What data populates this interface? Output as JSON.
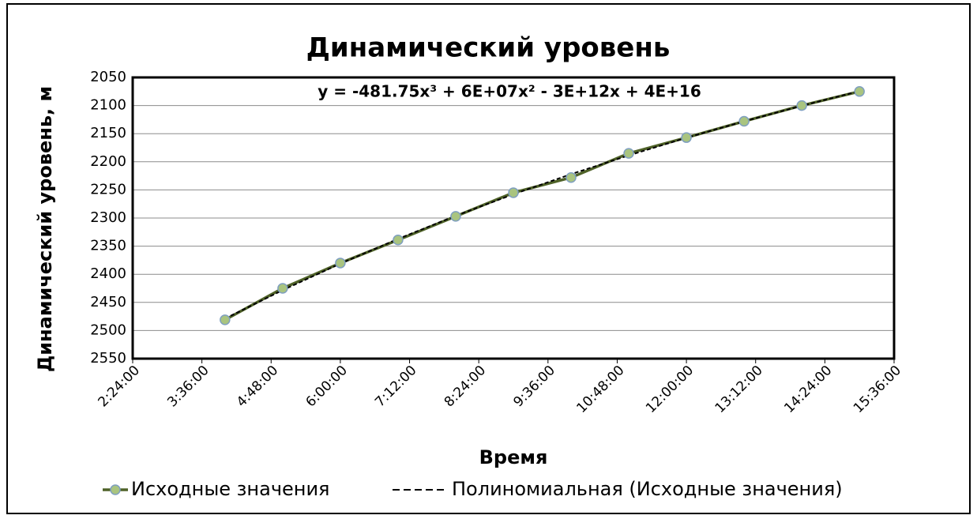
{
  "chart_data": {
    "type": "line",
    "title": "Динамический уровень",
    "x_label": "Время",
    "y_label": "Динамический уровень, м",
    "x": [
      "4:00:00",
      "5:00:00",
      "6:00:00",
      "7:00:00",
      "8:00:00",
      "9:00:00",
      "10:00:00",
      "11:00:00",
      "12:00:00",
      "13:00:00",
      "14:00:00",
      "15:00:00"
    ],
    "series": [
      {
        "name": "Исходные значения",
        "color": "#4f6228",
        "marker_color": "#a9c47f",
        "values": [
          2481,
          2425,
          2380,
          2339,
          2297,
          2255,
          2228,
          2185,
          2157,
          2128,
          2100,
          2075
        ]
      }
    ],
    "trendline": {
      "name": "Полиномиальная (Исходные значения)",
      "color": "#000000",
      "degree": 3,
      "equation": "y = -481.75x³ + 6E+07x² - 3E+12x + 4E+16"
    },
    "xlim": [
      "2:24:00",
      "15:36:00"
    ],
    "xticks": [
      "2:24:00",
      "3:36:00",
      "4:48:00",
      "6:00:00",
      "7:12:00",
      "8:24:00",
      "9:36:00",
      "10:48:00",
      "12:00:00",
      "13:12:00",
      "14:24:00",
      "15:36:00"
    ],
    "ylim": [
      2050,
      2550
    ],
    "y_reversed": true,
    "yticks": [
      2050,
      2100,
      2150,
      2200,
      2250,
      2300,
      2350,
      2400,
      2450,
      2500,
      2550
    ],
    "grid": true
  }
}
